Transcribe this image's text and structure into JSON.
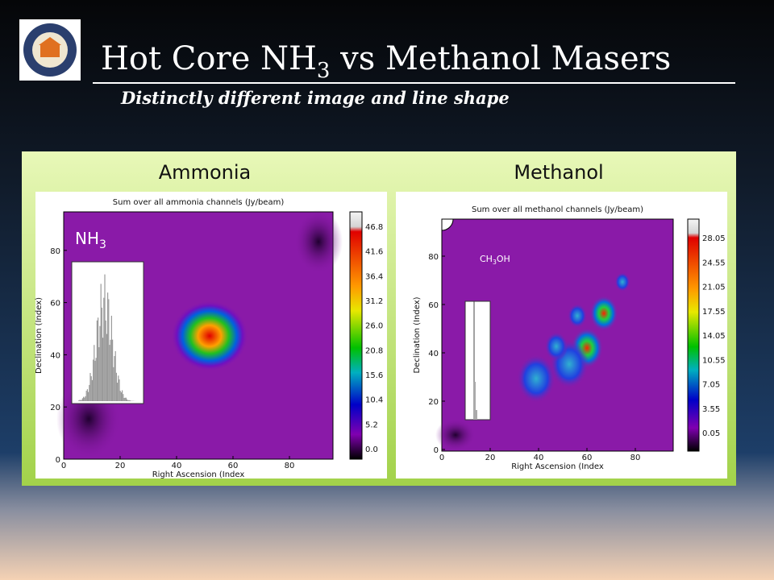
{
  "header": {
    "title_start": "Hot Core NH",
    "title_sub": "3",
    "title_end": " vs Methanol Masers",
    "subtitle": "Distinctly different image and line shape"
  },
  "panels": [
    {
      "heading": "Ammonia",
      "plot_title": "Sum over all ammonia channels (Jy/beam)",
      "x_label": "Right Ascension (Index",
      "y_label": "Declination (Index)",
      "x_ticks": [
        "0",
        "20",
        "40",
        "60",
        "80"
      ],
      "y_ticks": [
        "0",
        "20",
        "40",
        "60",
        "80"
      ],
      "colorbar_ticks": [
        "0.0",
        "5.2",
        "10.4",
        "15.6",
        "20.8",
        "26.0",
        "31.2",
        "36.4",
        "41.6",
        "46.8"
      ],
      "inset_label_start": "NH",
      "inset_label_sub": "3",
      "inset_label_end": ""
    },
    {
      "heading": "Methanol",
      "plot_title": "Sum over all methanol channels (Jy/beam)",
      "x_label": "Right Ascension (Index",
      "y_label": "Declination (Index)",
      "x_ticks": [
        "0",
        "20",
        "40",
        "60",
        "80"
      ],
      "y_ticks": [
        "0",
        "20",
        "40",
        "60",
        "80"
      ],
      "colorbar_ticks": [
        "0.05",
        "3.55",
        "7.05",
        "10.55",
        "14.05",
        "17.55",
        "21.05",
        "24.55",
        "28.05"
      ],
      "inset_label_start": "CH",
      "inset_label_sub": "3",
      "inset_label_end": "OH"
    }
  ]
}
